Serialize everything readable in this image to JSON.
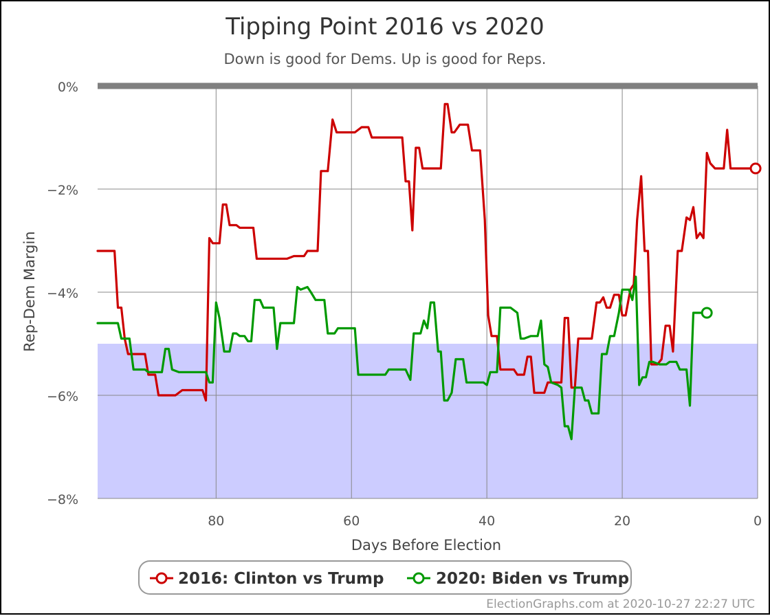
{
  "chart_data": {
    "type": "line",
    "title": "Tipping Point 2016 vs 2020",
    "subtitle": "Down is good for Dems. Up is good for Reps.",
    "xlabel": "Days Before Election",
    "ylabel": "Rep-Dem Margin",
    "xlim": [
      97.5,
      0
    ],
    "ylim": [
      -8,
      0
    ],
    "x_ticks": [
      80,
      60,
      40,
      20,
      0
    ],
    "x_tick_labels": [
      "80",
      "60",
      "40",
      "20",
      "0"
    ],
    "y_ticks": [
      0,
      -2,
      -4,
      -6,
      -8
    ],
    "y_tick_labels": [
      "0%",
      "−2%",
      "−4%",
      "−6%",
      "−8%"
    ],
    "grid": true,
    "shaded_band": {
      "from": -8,
      "to": -5,
      "color": "#ccccff"
    },
    "reference_line": {
      "y": 0,
      "color": "#808080"
    },
    "legend_position": "bottom-center",
    "credit": "ElectionGraphs.com at 2020-10-27 22:27 UTC",
    "series": [
      {
        "name": "2016: Clinton vs Trump",
        "color": "#cc0000",
        "points": [
          [
            97.5,
            -3.2
          ],
          [
            95,
            -3.2
          ],
          [
            94.5,
            -4.3
          ],
          [
            94,
            -4.3
          ],
          [
            93.5,
            -4.9
          ],
          [
            93,
            -5.2
          ],
          [
            90.5,
            -5.2
          ],
          [
            90,
            -5.6
          ],
          [
            89,
            -5.6
          ],
          [
            88.5,
            -6.0
          ],
          [
            86,
            -6.0
          ],
          [
            85,
            -5.9
          ],
          [
            82,
            -5.9
          ],
          [
            81.5,
            -6.1
          ],
          [
            81,
            -2.95
          ],
          [
            80.5,
            -3.05
          ],
          [
            79.5,
            -3.05
          ],
          [
            79,
            -2.3
          ],
          [
            78.5,
            -2.3
          ],
          [
            78,
            -2.7
          ],
          [
            77,
            -2.7
          ],
          [
            76.5,
            -2.75
          ],
          [
            74.5,
            -2.75
          ],
          [
            74,
            -3.35
          ],
          [
            69.5,
            -3.35
          ],
          [
            68.5,
            -3.3
          ],
          [
            67,
            -3.3
          ],
          [
            66.5,
            -3.2
          ],
          [
            65,
            -3.2
          ],
          [
            64.5,
            -1.65
          ],
          [
            63.5,
            -1.65
          ],
          [
            62.8,
            -0.65
          ],
          [
            62.2,
            -0.9
          ],
          [
            59.5,
            -0.9
          ],
          [
            58.5,
            -0.8
          ],
          [
            57.5,
            -0.8
          ],
          [
            57,
            -1.0
          ],
          [
            52.5,
            -1.0
          ],
          [
            52,
            -1.85
          ],
          [
            51.5,
            -1.85
          ],
          [
            51,
            -2.8
          ],
          [
            50.5,
            -1.2
          ],
          [
            50,
            -1.2
          ],
          [
            49.5,
            -1.6
          ],
          [
            46.8,
            -1.6
          ],
          [
            46.2,
            -0.35
          ],
          [
            45.8,
            -0.35
          ],
          [
            45.2,
            -0.9
          ],
          [
            44.8,
            -0.9
          ],
          [
            44,
            -0.75
          ],
          [
            42.8,
            -0.75
          ],
          [
            42.2,
            -1.25
          ],
          [
            41,
            -1.25
          ],
          [
            40.3,
            -2.6
          ],
          [
            39.8,
            -4.45
          ],
          [
            39.3,
            -4.85
          ],
          [
            38.5,
            -4.85
          ],
          [
            38,
            -5.5
          ],
          [
            36,
            -5.5
          ],
          [
            35.5,
            -5.6
          ],
          [
            34.5,
            -5.6
          ],
          [
            34,
            -5.25
          ],
          [
            33.5,
            -5.25
          ],
          [
            33,
            -5.95
          ],
          [
            31.5,
            -5.95
          ],
          [
            31,
            -5.75
          ],
          [
            29,
            -5.75
          ],
          [
            28.5,
            -4.5
          ],
          [
            28,
            -4.5
          ],
          [
            27.5,
            -5.85
          ],
          [
            27,
            -5.85
          ],
          [
            26.5,
            -4.9
          ],
          [
            24.5,
            -4.9
          ],
          [
            23.8,
            -4.2
          ],
          [
            23.3,
            -4.2
          ],
          [
            22.8,
            -4.1
          ],
          [
            22.3,
            -4.3
          ],
          [
            21.8,
            -4.3
          ],
          [
            21.2,
            -4.05
          ],
          [
            20.5,
            -4.05
          ],
          [
            20,
            -4.45
          ],
          [
            19.5,
            -4.45
          ],
          [
            18.8,
            -3.95
          ],
          [
            18.3,
            -3.85
          ],
          [
            17.8,
            -2.6
          ],
          [
            17.2,
            -1.75
          ],
          [
            16.7,
            -3.2
          ],
          [
            16.2,
            -3.2
          ],
          [
            15.7,
            -5.4
          ],
          [
            14.8,
            -5.4
          ],
          [
            14.2,
            -5.3
          ],
          [
            13.6,
            -4.65
          ],
          [
            13,
            -4.65
          ],
          [
            12.5,
            -5.15
          ],
          [
            11.8,
            -3.2
          ],
          [
            11.2,
            -3.2
          ],
          [
            10.5,
            -2.55
          ],
          [
            10,
            -2.6
          ],
          [
            9.5,
            -2.35
          ],
          [
            9,
            -2.95
          ],
          [
            8.5,
            -2.85
          ],
          [
            8,
            -2.95
          ],
          [
            7.5,
            -1.3
          ],
          [
            7,
            -1.5
          ],
          [
            6.3,
            -1.6
          ],
          [
            5,
            -1.6
          ],
          [
            4.5,
            -0.85
          ],
          [
            4,
            -1.6
          ],
          [
            0.3,
            -1.6
          ]
        ]
      },
      {
        "name": "2020: Biden vs Trump",
        "color": "#009900",
        "points": [
          [
            97.5,
            -4.6
          ],
          [
            94.5,
            -4.6
          ],
          [
            94,
            -4.9
          ],
          [
            92.8,
            -4.9
          ],
          [
            92.2,
            -5.5
          ],
          [
            90.5,
            -5.5
          ],
          [
            90,
            -5.55
          ],
          [
            89,
            -5.55
          ],
          [
            88,
            -5.55
          ],
          [
            87.5,
            -5.1
          ],
          [
            87,
            -5.1
          ],
          [
            86.5,
            -5.5
          ],
          [
            85.5,
            -5.55
          ],
          [
            85,
            -5.55
          ],
          [
            84,
            -5.55
          ],
          [
            81.5,
            -5.55
          ],
          [
            81,
            -5.75
          ],
          [
            80.5,
            -5.75
          ],
          [
            80,
            -4.2
          ],
          [
            79.5,
            -4.5
          ],
          [
            78.8,
            -5.15
          ],
          [
            78,
            -5.15
          ],
          [
            77.5,
            -4.8
          ],
          [
            77,
            -4.8
          ],
          [
            76.5,
            -4.85
          ],
          [
            75.8,
            -4.85
          ],
          [
            75.3,
            -4.95
          ],
          [
            74.8,
            -4.95
          ],
          [
            74.3,
            -4.15
          ],
          [
            73.5,
            -4.15
          ],
          [
            73,
            -4.3
          ],
          [
            71.5,
            -4.3
          ],
          [
            71,
            -5.1
          ],
          [
            70.5,
            -4.6
          ],
          [
            68.5,
            -4.6
          ],
          [
            68,
            -3.9
          ],
          [
            67.5,
            -3.95
          ],
          [
            66.5,
            -3.9
          ],
          [
            66,
            -4.0
          ],
          [
            65.3,
            -4.15
          ],
          [
            64,
            -4.15
          ],
          [
            63.5,
            -4.8
          ],
          [
            62.5,
            -4.8
          ],
          [
            62,
            -4.7
          ],
          [
            61,
            -4.7
          ],
          [
            59.5,
            -4.7
          ],
          [
            59,
            -5.6
          ],
          [
            55,
            -5.6
          ],
          [
            54.5,
            -5.5
          ],
          [
            52,
            -5.5
          ],
          [
            51.3,
            -5.7
          ],
          [
            50.8,
            -4.8
          ],
          [
            49.8,
            -4.8
          ],
          [
            49.3,
            -4.55
          ],
          [
            48.8,
            -4.7
          ],
          [
            48.3,
            -4.2
          ],
          [
            47.8,
            -4.2
          ],
          [
            47.2,
            -5.15
          ],
          [
            46.8,
            -5.15
          ],
          [
            46.3,
            -6.1
          ],
          [
            45.8,
            -6.1
          ],
          [
            45.2,
            -5.95
          ],
          [
            44.6,
            -5.3
          ],
          [
            43.5,
            -5.3
          ],
          [
            43,
            -5.75
          ],
          [
            40.5,
            -5.75
          ],
          [
            40,
            -5.8
          ],
          [
            39.5,
            -5.55
          ],
          [
            38.5,
            -5.55
          ],
          [
            38,
            -4.3
          ],
          [
            36.5,
            -4.3
          ],
          [
            35.5,
            -4.4
          ],
          [
            35,
            -4.9
          ],
          [
            34.5,
            -4.9
          ],
          [
            33.5,
            -4.85
          ],
          [
            32.5,
            -4.85
          ],
          [
            32,
            -4.55
          ],
          [
            31.5,
            -5.4
          ],
          [
            31,
            -5.45
          ],
          [
            30.5,
            -5.75
          ],
          [
            29.5,
            -5.8
          ],
          [
            29,
            -5.85
          ],
          [
            28.5,
            -6.6
          ],
          [
            28,
            -6.6
          ],
          [
            27.5,
            -6.85
          ],
          [
            27,
            -5.85
          ],
          [
            26,
            -5.85
          ],
          [
            25.5,
            -6.1
          ],
          [
            25,
            -6.1
          ],
          [
            24.5,
            -6.35
          ],
          [
            23.5,
            -6.35
          ],
          [
            23,
            -5.2
          ],
          [
            22.3,
            -5.2
          ],
          [
            21.8,
            -4.85
          ],
          [
            21.2,
            -4.85
          ],
          [
            20.5,
            -4.4
          ],
          [
            20,
            -3.95
          ],
          [
            19,
            -3.95
          ],
          [
            18.5,
            -4.15
          ],
          [
            18,
            -3.7
          ],
          [
            17.5,
            -5.8
          ],
          [
            17,
            -5.65
          ],
          [
            16.5,
            -5.65
          ],
          [
            16,
            -5.35
          ],
          [
            15.5,
            -5.35
          ],
          [
            14.5,
            -5.4
          ],
          [
            13.5,
            -5.4
          ],
          [
            13,
            -5.35
          ],
          [
            12,
            -5.35
          ],
          [
            11.5,
            -5.5
          ],
          [
            10.5,
            -5.5
          ],
          [
            10,
            -6.2
          ],
          [
            9.5,
            -4.4
          ],
          [
            8.5,
            -4.4
          ],
          [
            7.5,
            -4.4
          ]
        ]
      }
    ]
  }
}
